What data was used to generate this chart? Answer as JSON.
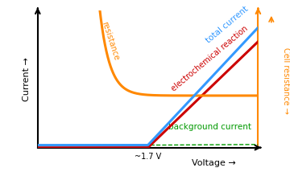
{
  "background_color": "#ffffff",
  "xlim": [
    0,
    10
  ],
  "ylim": [
    0,
    10
  ],
  "threshold_v": 5.0,
  "res_start_x": 2.8,
  "colors": {
    "total_current": "#3399ff",
    "electrochemical": "#cc0000",
    "background": "#009900",
    "resistance": "#ff8800"
  },
  "xlabel": "Voltage →",
  "ylabel": "Current →",
  "right_ylabel": "Cell resistance →",
  "label_1_7V": "~1.7 V",
  "annotations": {
    "total_current": "total current",
    "electrochemical": "electrochemical reaction",
    "background": "background current",
    "resistance": "resistance"
  }
}
